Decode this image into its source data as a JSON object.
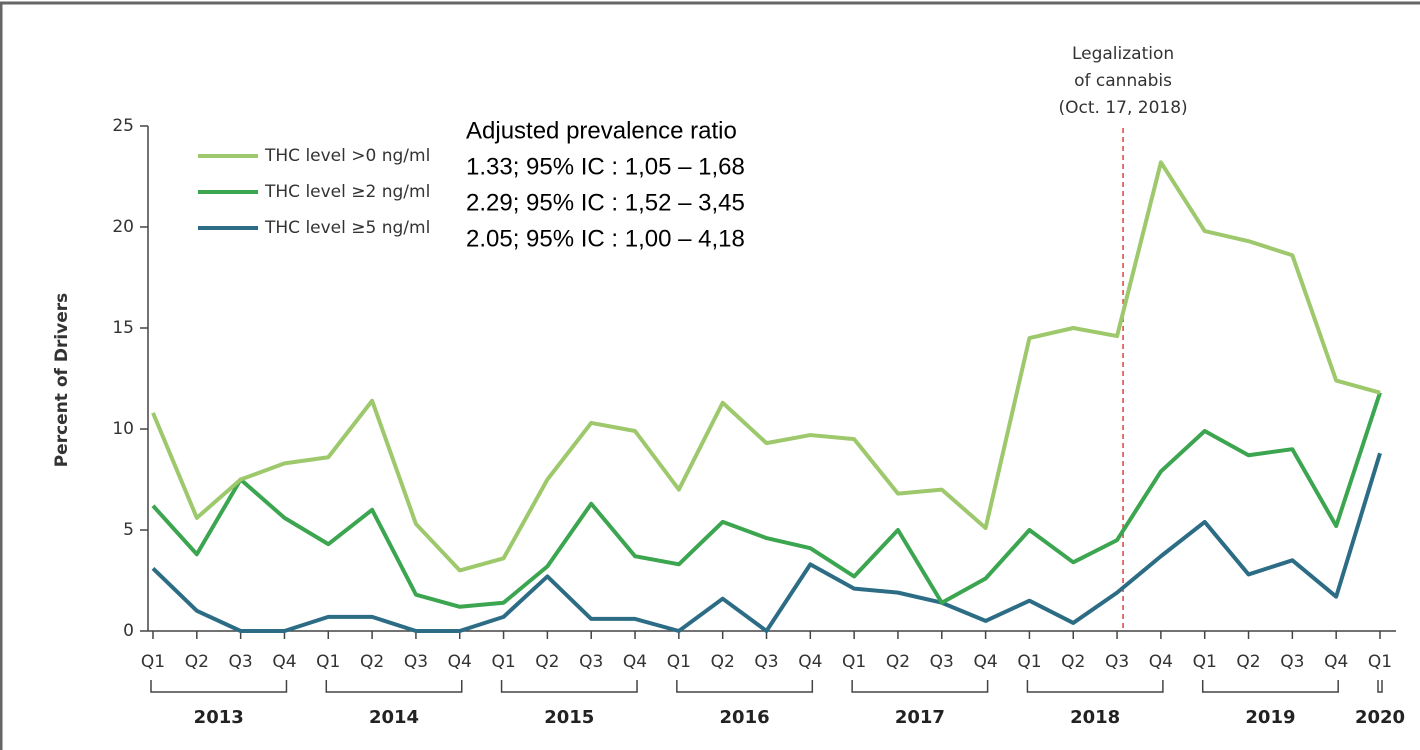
{
  "chart_data": {
    "type": "line",
    "y_label": "Percent of Drivers",
    "categories": [
      "Q1",
      "Q2",
      "Q3",
      "Q4",
      "Q1",
      "Q2",
      "Q3",
      "Q4",
      "Q1",
      "Q2",
      "Q3",
      "Q4",
      "Q1",
      "Q2",
      "Q3",
      "Q4",
      "Q1",
      "Q2",
      "Q3",
      "Q4",
      "Q1",
      "Q2",
      "Q3",
      "Q4",
      "Q1",
      "Q2",
      "Q3",
      "Q4",
      "Q1"
    ],
    "x_groups": [
      {
        "label": "2013",
        "count": 4
      },
      {
        "label": "2014",
        "count": 4
      },
      {
        "label": "2015",
        "count": 4
      },
      {
        "label": "2016",
        "count": 4
      },
      {
        "label": "2017",
        "count": 4
      },
      {
        "label": "2018",
        "count": 4
      },
      {
        "label": "2019",
        "count": 4
      },
      {
        "label": "2020",
        "count": 1
      }
    ],
    "ylim": [
      0,
      25
    ],
    "yticks": [
      0,
      5,
      10,
      15,
      20,
      25
    ],
    "ratio_title": "Adjusted prevalence ratio",
    "series": [
      {
        "name": "THC level >0 ng/ml",
        "color": "#9dc86c",
        "ratio_label": "1.33; 95% IC : 1,05 – 1,68",
        "values": [
          10.8,
          5.6,
          7.5,
          8.3,
          8.6,
          11.4,
          5.3,
          3.0,
          3.6,
          7.5,
          10.3,
          9.9,
          7.0,
          11.3,
          9.3,
          9.7,
          9.5,
          6.8,
          7.0,
          5.1,
          14.5,
          15.0,
          14.6,
          23.2,
          19.8,
          19.3,
          18.6,
          12.4,
          11.8
        ]
      },
      {
        "name": "THC level ≥2 ng/ml",
        "color": "#3ba550",
        "ratio_label": "2.29; 95% IC : 1,52 – 3,45",
        "values": [
          6.2,
          3.8,
          7.5,
          5.6,
          4.3,
          6.0,
          1.8,
          1.2,
          1.4,
          3.2,
          6.3,
          3.7,
          3.3,
          5.4,
          4.6,
          4.1,
          2.7,
          5.0,
          1.4,
          2.6,
          5.0,
          3.4,
          4.5,
          7.9,
          9.9,
          8.7,
          9.0,
          5.2,
          11.8
        ]
      },
      {
        "name": "THC level ≥5 ng/ml",
        "color": "#2c6d85",
        "ratio_label": "2.05; 95% IC : 1,00 – 4,18",
        "values": [
          3.1,
          1.0,
          0,
          0,
          0.7,
          0.7,
          0,
          0,
          0.7,
          2.7,
          0.6,
          0.6,
          0,
          1.6,
          0,
          3.3,
          2.1,
          1.9,
          1.4,
          0.5,
          1.5,
          0.4,
          1.9,
          3.7,
          5.4,
          2.8,
          3.5,
          1.7,
          8.8
        ]
      }
    ],
    "annotation": {
      "lines": [
        "Legalization",
        "of cannabis",
        "(Oct. 17, 2018)"
      ]
    }
  }
}
